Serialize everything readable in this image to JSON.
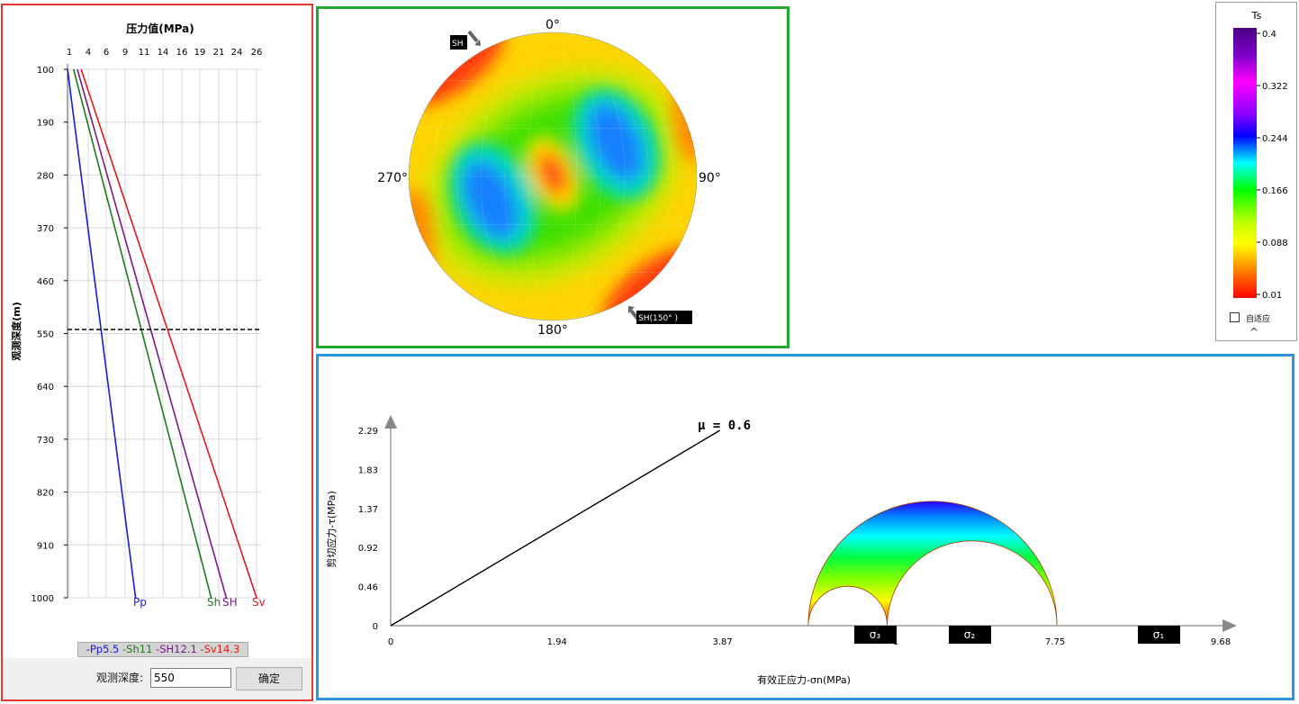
{
  "left_panel": {
    "title": "压力值(MPa)",
    "y_label": "观测深度(m)",
    "x_ticks": [
      "1",
      "4",
      "6",
      "9",
      "11",
      "14",
      "16",
      "19",
      "21",
      "24",
      "26"
    ],
    "y_ticks": [
      "100",
      "190",
      "280",
      "370",
      "460",
      "550",
      "640",
      "730",
      "820",
      "910",
      "1000"
    ],
    "observed_depth_label": "观测深度:",
    "observed_depth_value": "550",
    "confirm_button": "确定",
    "legend": [
      {
        "text": "-Pp5.5",
        "color": "#1a1ad0"
      },
      {
        "text": "-Sh11",
        "color": "#1e7a1e"
      },
      {
        "text": "-SH12.1",
        "color": "#7a1a8a"
      },
      {
        "text": "-Sv14.3",
        "color": "#e01a1a"
      }
    ],
    "end_labels": {
      "pp": "Pp",
      "sh": "Sh",
      "SH": "SH",
      "sv": "Sv"
    }
  },
  "stereonet": {
    "top": "0°",
    "right": "90°",
    "bottom": "180°",
    "left": "270°",
    "sh_marker": "SH",
    "sh_main": "SH",
    "sh_angle": "(150°  )"
  },
  "colorbar": {
    "title": "Ts",
    "ticks": [
      "0.4",
      "0.322",
      "0.244",
      "0.166",
      "0.088",
      "0.01"
    ],
    "adaptive_label": "自适应"
  },
  "mohr": {
    "mu_label": "μ  = 0.6",
    "y_label": "剪切应力-τ(MPa)",
    "x_label": "有效正应力-σn(MPa)",
    "y_ticks": [
      "2.29",
      "1.83",
      "1.37",
      "0.92",
      "0.46",
      "0"
    ],
    "x_ticks": [
      "0",
      "1.94",
      "3.87",
      "7.75",
      "9.68"
    ],
    "x_partial_tick": "1",
    "sigma3": "σ₃",
    "sigma2": "σ₂",
    "sigma1": "σ₁"
  },
  "chart_data": [
    {
      "type": "line",
      "title": "压力值(MPa)",
      "xlabel": "压力值(MPa)",
      "ylabel": "观测深度(m)",
      "xlim": [
        1,
        26
      ],
      "ylim": [
        100,
        1000
      ],
      "y_inverted": true,
      "marker_depth": 550,
      "series": [
        {
          "name": "Pp",
          "color": "#1a1ad0",
          "points": [
            [
              1,
              100
            ],
            [
              10,
              1000
            ]
          ]
        },
        {
          "name": "Sh",
          "color": "#1e7a1e",
          "points": [
            [
              1.8,
              100
            ],
            [
              20,
              1000
            ]
          ]
        },
        {
          "name": "SH",
          "color": "#7a1a8a",
          "points": [
            [
              2.3,
              100
            ],
            [
              22,
              1000
            ]
          ]
        },
        {
          "name": "Sv",
          "color": "#e01a1a",
          "points": [
            [
              2.8,
              100
            ],
            [
              26,
              1000
            ]
          ]
        }
      ]
    },
    {
      "type": "heatmap",
      "projection": "lower-hemisphere stereonet",
      "colorbar": {
        "label": "Ts",
        "min": 0.01,
        "max": 0.4
      },
      "sh_azimuth_deg": 150
    },
    {
      "type": "line",
      "xlabel": "有效正应力-σn(MPa)",
      "ylabel": "剪切应力-τ(MPa)",
      "xlim": [
        0,
        9.68
      ],
      "ylim": [
        0,
        2.29
      ],
      "friction_line": {
        "mu": 0.6,
        "points": [
          [
            0,
            0
          ],
          [
            3.84,
            2.29
          ]
        ]
      },
      "principal_stresses": {
        "sigma3": 4.87,
        "sigma2": 5.79,
        "sigma1": 7.77
      }
    }
  ]
}
